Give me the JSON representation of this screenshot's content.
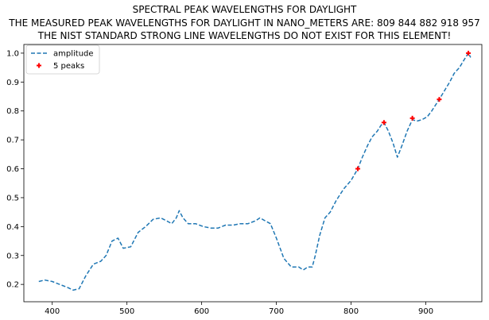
{
  "chart_data": {
    "type": "line",
    "title": [
      "SPECTRAL PEAK WAVELENGTHS FOR DAYLIGHT",
      "THE MEASURED PEAK WAVELENGTHS FOR DAYLIGHT IN NANO_METERS ARE: 809 844 882 918 957",
      "THE NIST STANDARD STRONG LINE WAVELENGTHS DO NOT EXIST FOR THIS ELEMENT!"
    ],
    "xlabel": "",
    "ylabel": "",
    "xlim": [
      362,
      975
    ],
    "ylim": [
      0.14,
      1.03
    ],
    "xticks": [
      400,
      500,
      600,
      700,
      800,
      900
    ],
    "yticks": [
      0.2,
      0.3,
      0.4,
      0.5,
      0.6,
      0.7,
      0.8,
      0.9,
      1.0
    ],
    "xtick_labels": [
      "400",
      "500",
      "600",
      "700",
      "800",
      "900"
    ],
    "ytick_labels": [
      "0.2",
      "0.3",
      "0.4",
      "0.5",
      "0.6",
      "0.7",
      "0.8",
      "0.9",
      "1.0"
    ],
    "grid": false,
    "legend": {
      "placement": "top-left",
      "entries": [
        "amplitude",
        "5 peaks"
      ]
    },
    "series": [
      {
        "name": "amplitude",
        "style": "dashed",
        "color": "#1f77b4",
        "x": [
          382,
          390,
          400,
          410,
          420,
          428,
          436,
          445,
          455,
          465,
          472,
          480,
          488,
          495,
          505,
          515,
          525,
          535,
          545,
          553,
          560,
          566,
          570,
          575,
          582,
          592,
          602,
          612,
          622,
          632,
          642,
          652,
          662,
          672,
          678,
          685,
          692,
          700,
          710,
          720,
          730,
          736,
          742,
          748,
          752,
          758,
          765,
          772,
          780,
          790,
          800,
          809,
          815,
          822,
          828,
          835,
          840,
          844,
          850,
          856,
          862,
          868,
          875,
          882,
          888,
          895,
          902,
          908,
          913,
          918,
          925,
          932,
          938,
          945,
          952,
          957,
          960
        ],
        "y": [
          0.21,
          0.215,
          0.21,
          0.2,
          0.19,
          0.18,
          0.185,
          0.23,
          0.27,
          0.28,
          0.3,
          0.35,
          0.36,
          0.325,
          0.33,
          0.38,
          0.4,
          0.425,
          0.43,
          0.42,
          0.41,
          0.43,
          0.455,
          0.43,
          0.41,
          0.41,
          0.4,
          0.395,
          0.395,
          0.405,
          0.405,
          0.41,
          0.41,
          0.42,
          0.43,
          0.42,
          0.41,
          0.36,
          0.29,
          0.26,
          0.26,
          0.25,
          0.26,
          0.26,
          0.3,
          0.37,
          0.43,
          0.45,
          0.49,
          0.53,
          0.56,
          0.6,
          0.64,
          0.68,
          0.71,
          0.73,
          0.75,
          0.76,
          0.73,
          0.69,
          0.64,
          0.68,
          0.73,
          0.77,
          0.765,
          0.77,
          0.78,
          0.8,
          0.82,
          0.84,
          0.87,
          0.9,
          0.93,
          0.95,
          0.98,
          1.0,
          0.985
        ]
      },
      {
        "name": "5 peaks",
        "style": "markers",
        "marker": "plus",
        "color": "#ff0000",
        "x": [
          809,
          844,
          882,
          918,
          957
        ],
        "y": [
          0.6,
          0.76,
          0.775,
          0.84,
          1.0
        ]
      }
    ]
  }
}
